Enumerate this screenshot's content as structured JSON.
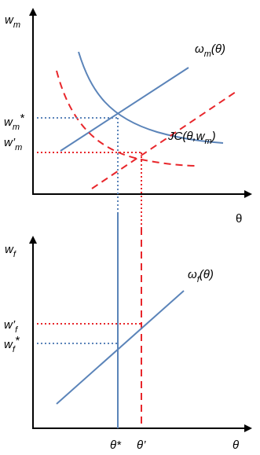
{
  "top_panel": {
    "y_axis_label_main": "w",
    "y_axis_label_sub": "m",
    "x_axis_label": "θ",
    "wage_curve_label": "ω",
    "wage_curve_label_sub": "m",
    "wage_curve_label_arg": "(θ)",
    "jc_curve_label": "JC(θ,w",
    "jc_curve_label_sub": "m",
    "jc_curve_label_close": ")",
    "tick_wm_star_main": "w",
    "tick_wm_star_sub": "m",
    "tick_wm_star_suffix": "*",
    "tick_wm_prime_main": "w’",
    "tick_wm_prime_sub": "m"
  },
  "bottom_panel": {
    "y_axis_label_main": "w",
    "y_axis_label_sub": "f",
    "x_axis_label": "θ",
    "wage_curve_label": "ω",
    "wage_curve_label_sub": "f",
    "wage_curve_label_arg": "(θ)",
    "tick_wf_prime_main": "w’",
    "tick_wf_prime_sub": "f",
    "tick_wf_star_main": "w",
    "tick_wf_star_sub": "f",
    "tick_wf_star_suffix": "*",
    "x_tick_theta_star": "θ*",
    "x_tick_theta_prime": "θ’"
  },
  "colors": {
    "curve_blue": "#5b84b9",
    "shift_red": "#e8262b",
    "axis": "#000000"
  }
}
